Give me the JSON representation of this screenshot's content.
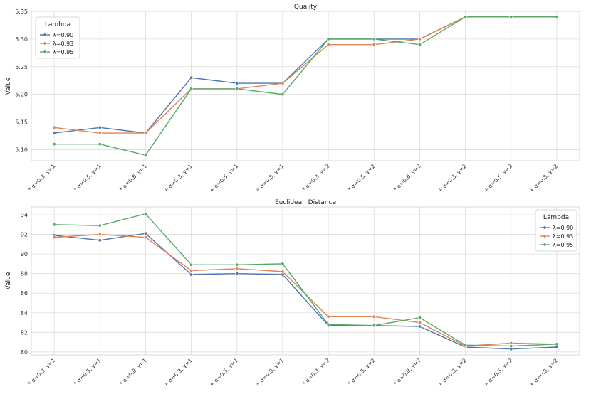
{
  "chart_data": [
    {
      "type": "line",
      "title": "Quality",
      "ylabel": "Value",
      "xlabel": "",
      "categories": [
        "* α=0.3, γ=1",
        "* α=0.5, γ=1",
        "* α=0.8, γ=1",
        "+ α=0.3, γ=1",
        "+ α=0.5, γ=1",
        "+ α=0.8, γ=1",
        "* α=0.3, γ=2",
        "* α=0.5, γ=2",
        "* α=0.8, γ=2",
        "+ α=0.3, γ=2",
        "+ α=0.5, γ=2",
        "+ α=0.8, γ=2"
      ],
      "ylim": [
        5.08,
        5.35
      ],
      "yticks": [
        "5.10",
        "5.15",
        "5.20",
        "5.25",
        "5.30",
        "5.35"
      ],
      "grid": true,
      "legend": {
        "title": "Lambda",
        "placement": "top-left"
      },
      "series": [
        {
          "name": "λ=0.90",
          "color": "#4c72b0",
          "values": [
            5.13,
            5.14,
            5.13,
            5.23,
            5.22,
            5.22,
            5.3,
            5.3,
            5.3,
            5.34,
            5.34,
            5.34
          ]
        },
        {
          "name": "λ=0.93",
          "color": "#dd8452",
          "values": [
            5.14,
            5.13,
            5.13,
            5.21,
            5.21,
            5.22,
            5.29,
            5.29,
            5.3,
            5.34,
            5.34,
            5.34
          ]
        },
        {
          "name": "λ=0.95",
          "color": "#55a868",
          "values": [
            5.11,
            5.11,
            5.09,
            5.21,
            5.21,
            5.2,
            5.3,
            5.3,
            5.29,
            5.34,
            5.34,
            5.34
          ]
        }
      ]
    },
    {
      "type": "line",
      "title": "Euclidean Distance",
      "ylabel": "Value",
      "xlabel": "",
      "categories": [
        "* α=0.3, γ=1",
        "* α=0.5, γ=1",
        "* α=0.8, γ=1",
        "+ α=0.3, γ=1",
        "+ α=0.5, γ=1",
        "+ α=0.8, γ=1",
        "* α=0.3, γ=2",
        "* α=0.5, γ=2",
        "* α=0.8, γ=2",
        "+ α=0.3, γ=2",
        "+ α=0.5, γ=2",
        "+ α=0.8, γ=2"
      ],
      "ylim": [
        79.7,
        94.8
      ],
      "yticks": [
        "80",
        "82",
        "84",
        "86",
        "88",
        "90",
        "92",
        "94"
      ],
      "grid": true,
      "legend": {
        "title": "Lambda",
        "placement": "top-right"
      },
      "series": [
        {
          "name": "λ=0.90",
          "color": "#4c72b0",
          "values": [
            91.9,
            91.4,
            92.1,
            87.9,
            88.0,
            87.9,
            82.7,
            82.7,
            82.6,
            80.5,
            80.3,
            80.5
          ]
        },
        {
          "name": "λ=0.93",
          "color": "#dd8452",
          "values": [
            91.7,
            92.0,
            91.7,
            88.3,
            88.5,
            88.2,
            83.6,
            83.6,
            83.0,
            80.6,
            80.9,
            80.8
          ]
        },
        {
          "name": "λ=0.95",
          "color": "#55a868",
          "values": [
            93.0,
            92.9,
            94.1,
            88.9,
            88.9,
            89.0,
            82.8,
            82.7,
            83.5,
            80.7,
            80.6,
            80.8
          ]
        }
      ]
    }
  ]
}
